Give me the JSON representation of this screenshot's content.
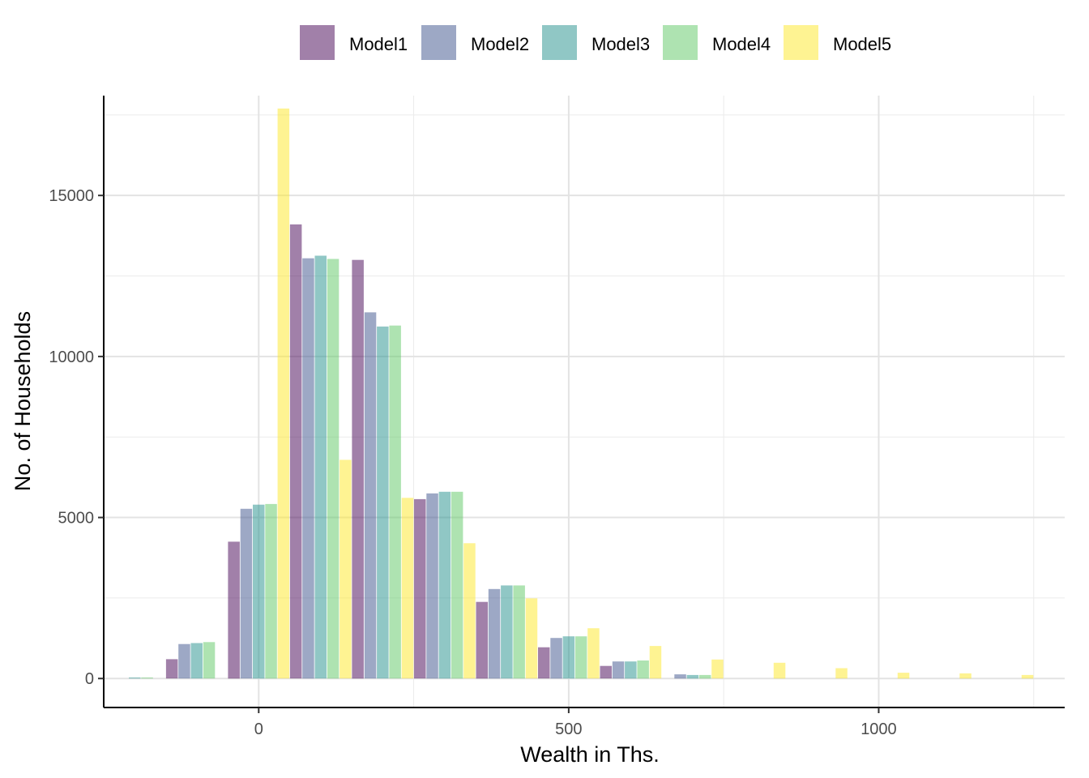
{
  "chart_data": {
    "type": "bar",
    "xlabel": "Wealth in Ths.",
    "ylabel": "No. of Households",
    "x_ticks": [
      0,
      500,
      1000
    ],
    "y_ticks": [
      0,
      5000,
      10000,
      15000
    ],
    "xlim": [
      -250,
      1300
    ],
    "ylim": [
      -900,
      18100
    ],
    "grid": true,
    "legend_position": "top",
    "bin_centers": [
      -200,
      -100,
      0,
      100,
      200,
      300,
      400,
      500,
      600,
      700,
      800,
      900,
      1000,
      1100,
      1200
    ],
    "series": [
      {
        "name": "Model1",
        "color": "#440154",
        "values": [
          0,
          600,
          4250,
          14100,
          13000,
          5570,
          2380,
          970,
          390,
          0,
          0,
          0,
          0,
          0,
          0
        ]
      },
      {
        "name": "Model2",
        "color": "#3b528b",
        "values": [
          0,
          1070,
          5270,
          13050,
          11370,
          5750,
          2780,
          1260,
          530,
          130,
          0,
          0,
          0,
          0,
          0
        ]
      },
      {
        "name": "Model3",
        "color": "#21908c",
        "values": [
          30,
          1100,
          5400,
          13130,
          10930,
          5800,
          2890,
          1310,
          530,
          110,
          0,
          0,
          0,
          0,
          0
        ]
      },
      {
        "name": "Model4",
        "color": "#5dc863",
        "values": [
          30,
          1130,
          5420,
          13030,
          10960,
          5800,
          2890,
          1310,
          560,
          110,
          0,
          0,
          0,
          0,
          0
        ]
      },
      {
        "name": "Model5",
        "color": "#fde725",
        "values": [
          0,
          0,
          17700,
          6790,
          5610,
          4200,
          2490,
          1560,
          1010,
          590,
          490,
          320,
          180,
          160,
          110
        ]
      }
    ],
    "bar_opacity": 0.5
  },
  "legend": {
    "items": [
      {
        "label": "Model1",
        "color": "#440154"
      },
      {
        "label": "Model2",
        "color": "#3b528b"
      },
      {
        "label": "Model3",
        "color": "#21908c"
      },
      {
        "label": "Model4",
        "color": "#5dc863"
      },
      {
        "label": "Model5",
        "color": "#fde725"
      }
    ]
  }
}
